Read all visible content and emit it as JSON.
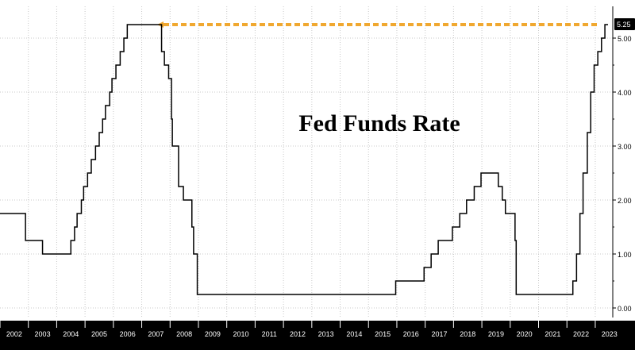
{
  "chart_data": {
    "type": "line",
    "title": "Fed Funds Rate",
    "xlabel": "",
    "ylabel": "",
    "ylim": [
      -0.2,
      5.55
    ],
    "xlim": [
      2002.0,
      2023.45
    ],
    "grid": true,
    "legend": "none",
    "y_ticks": [
      "0.00",
      "1.00",
      "2.00",
      "3.00",
      "4.00",
      "5.00"
    ],
    "x_ticks": [
      "2002",
      "2003",
      "2004",
      "2005",
      "2006",
      "2007",
      "2008",
      "2009",
      "2010",
      "2011",
      "2012",
      "2013",
      "2014",
      "2015",
      "2016",
      "2017",
      "2018",
      "2019",
      "2020",
      "2021",
      "2022",
      "2023"
    ],
    "last_value_label": "5.25",
    "reference_level": 5.25,
    "series": [
      {
        "values": [
          [
            2002.0,
            1.75
          ],
          [
            2002.9,
            1.75
          ],
          [
            2002.9,
            1.25
          ],
          [
            2003.5,
            1.25
          ],
          [
            2003.5,
            1.0
          ],
          [
            2004.5,
            1.0
          ],
          [
            2004.5,
            1.25
          ],
          [
            2004.63,
            1.25
          ],
          [
            2004.63,
            1.5
          ],
          [
            2004.72,
            1.5
          ],
          [
            2004.72,
            1.75
          ],
          [
            2004.87,
            1.75
          ],
          [
            2004.87,
            2.0
          ],
          [
            2004.95,
            2.0
          ],
          [
            2004.95,
            2.25
          ],
          [
            2005.09,
            2.25
          ],
          [
            2005.09,
            2.5
          ],
          [
            2005.22,
            2.5
          ],
          [
            2005.22,
            2.75
          ],
          [
            2005.37,
            2.75
          ],
          [
            2005.37,
            3.0
          ],
          [
            2005.5,
            3.0
          ],
          [
            2005.5,
            3.25
          ],
          [
            2005.62,
            3.25
          ],
          [
            2005.62,
            3.5
          ],
          [
            2005.72,
            3.5
          ],
          [
            2005.72,
            3.75
          ],
          [
            2005.87,
            3.75
          ],
          [
            2005.87,
            4.0
          ],
          [
            2005.95,
            4.0
          ],
          [
            2005.95,
            4.25
          ],
          [
            2006.09,
            4.25
          ],
          [
            2006.09,
            4.5
          ],
          [
            2006.24,
            4.5
          ],
          [
            2006.24,
            4.75
          ],
          [
            2006.37,
            4.75
          ],
          [
            2006.37,
            5.0
          ],
          [
            2006.49,
            5.0
          ],
          [
            2006.49,
            5.25
          ],
          [
            2007.7,
            5.25
          ],
          [
            2007.7,
            4.75
          ],
          [
            2007.8,
            4.75
          ],
          [
            2007.8,
            4.5
          ],
          [
            2007.95,
            4.5
          ],
          [
            2007.95,
            4.25
          ],
          [
            2008.05,
            4.25
          ],
          [
            2008.05,
            3.5
          ],
          [
            2008.08,
            3.5
          ],
          [
            2008.08,
            3.0
          ],
          [
            2008.3,
            3.0
          ],
          [
            2008.3,
            2.25
          ],
          [
            2008.47,
            2.25
          ],
          [
            2008.47,
            2.0
          ],
          [
            2008.77,
            2.0
          ],
          [
            2008.77,
            1.5
          ],
          [
            2008.83,
            1.5
          ],
          [
            2008.83,
            1.0
          ],
          [
            2008.96,
            1.0
          ],
          [
            2008.96,
            0.25
          ],
          [
            2015.96,
            0.25
          ],
          [
            2015.96,
            0.5
          ],
          [
            2016.96,
            0.5
          ],
          [
            2016.96,
            0.75
          ],
          [
            2017.21,
            0.75
          ],
          [
            2017.21,
            1.0
          ],
          [
            2017.46,
            1.0
          ],
          [
            2017.46,
            1.25
          ],
          [
            2017.96,
            1.25
          ],
          [
            2017.96,
            1.5
          ],
          [
            2018.22,
            1.5
          ],
          [
            2018.22,
            1.75
          ],
          [
            2018.46,
            1.75
          ],
          [
            2018.46,
            2.0
          ],
          [
            2018.73,
            2.0
          ],
          [
            2018.73,
            2.25
          ],
          [
            2018.97,
            2.25
          ],
          [
            2018.97,
            2.5
          ],
          [
            2019.58,
            2.5
          ],
          [
            2019.58,
            2.25
          ],
          [
            2019.72,
            2.25
          ],
          [
            2019.72,
            2.0
          ],
          [
            2019.83,
            2.0
          ],
          [
            2019.83,
            1.75
          ],
          [
            2020.17,
            1.75
          ],
          [
            2020.17,
            1.25
          ],
          [
            2020.21,
            1.25
          ],
          [
            2020.21,
            0.25
          ],
          [
            2022.21,
            0.25
          ],
          [
            2022.21,
            0.5
          ],
          [
            2022.34,
            0.5
          ],
          [
            2022.34,
            1.0
          ],
          [
            2022.46,
            1.0
          ],
          [
            2022.46,
            1.75
          ],
          [
            2022.57,
            1.75
          ],
          [
            2022.57,
            2.5
          ],
          [
            2022.72,
            2.5
          ],
          [
            2022.72,
            3.25
          ],
          [
            2022.84,
            3.25
          ],
          [
            2022.84,
            4.0
          ],
          [
            2022.96,
            4.0
          ],
          [
            2022.96,
            4.5
          ],
          [
            2023.09,
            4.5
          ],
          [
            2023.09,
            4.75
          ],
          [
            2023.22,
            4.75
          ],
          [
            2023.22,
            5.0
          ],
          [
            2023.34,
            5.0
          ],
          [
            2023.34,
            5.25
          ],
          [
            2023.45,
            5.25
          ]
        ]
      }
    ]
  },
  "colors": {
    "line": "#000000",
    "reference": "#f0a830",
    "grid": "#c8c8c8",
    "axis_bar": "#000000",
    "tick_text": "#000000",
    "x_tick_text": "#ffffff"
  }
}
